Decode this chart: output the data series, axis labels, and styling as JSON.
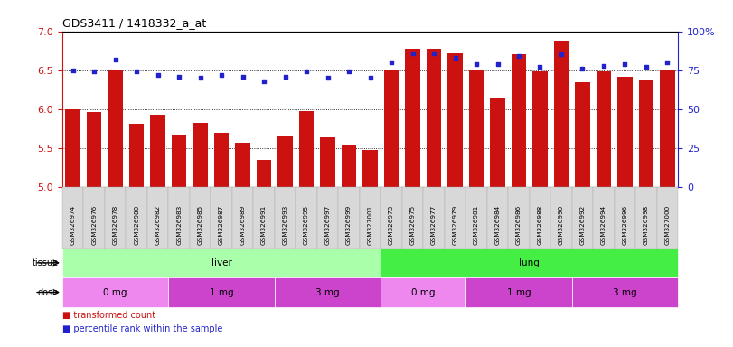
{
  "title": "GDS3411 / 1418332_a_at",
  "samples": [
    "GSM326974",
    "GSM326976",
    "GSM326978",
    "GSM326980",
    "GSM326982",
    "GSM326983",
    "GSM326985",
    "GSM326987",
    "GSM326989",
    "GSM326991",
    "GSM326993",
    "GSM326995",
    "GSM326997",
    "GSM326999",
    "GSM327001",
    "GSM326973",
    "GSM326975",
    "GSM326977",
    "GSM326979",
    "GSM326981",
    "GSM326984",
    "GSM326986",
    "GSM326988",
    "GSM326990",
    "GSM326992",
    "GSM326994",
    "GSM326996",
    "GSM326998",
    "GSM327000"
  ],
  "bar_values": [
    6.0,
    5.96,
    6.5,
    5.82,
    5.93,
    5.67,
    5.83,
    5.7,
    5.57,
    5.35,
    5.66,
    5.98,
    5.64,
    5.55,
    5.48,
    6.5,
    6.78,
    6.78,
    6.72,
    6.5,
    6.15,
    6.7,
    6.48,
    6.88,
    6.35,
    6.48,
    6.42,
    6.38,
    6.5
  ],
  "percentile_values": [
    75,
    74,
    82,
    74,
    72,
    71,
    70,
    72,
    71,
    68,
    71,
    74,
    70,
    74,
    70,
    80,
    86,
    86,
    83,
    79,
    79,
    84,
    77,
    85,
    76,
    78,
    79,
    77,
    80
  ],
  "ylim_left": [
    5.0,
    7.0
  ],
  "ylim_right": [
    0,
    100
  ],
  "yticks_left": [
    5.0,
    5.5,
    6.0,
    6.5,
    7.0
  ],
  "yticks_right": [
    0,
    25,
    50,
    75,
    100
  ],
  "bar_color": "#cc1111",
  "dot_color": "#2222cc",
  "tissue_groups": [
    {
      "label": "liver",
      "start": 0,
      "end": 15,
      "color": "#aaffaa"
    },
    {
      "label": "lung",
      "start": 15,
      "end": 29,
      "color": "#44ee44"
    }
  ],
  "dose_groups": [
    {
      "label": "0 mg",
      "start": 0,
      "end": 5,
      "color": "#ee88ee"
    },
    {
      "label": "1 mg",
      "start": 5,
      "end": 10,
      "color": "#cc44cc"
    },
    {
      "label": "3 mg",
      "start": 10,
      "end": 15,
      "color": "#cc44cc"
    },
    {
      "label": "0 mg",
      "start": 15,
      "end": 19,
      "color": "#ee88ee"
    },
    {
      "label": "1 mg",
      "start": 19,
      "end": 24,
      "color": "#cc44cc"
    },
    {
      "label": "3 mg",
      "start": 24,
      "end": 29,
      "color": "#cc44cc"
    }
  ],
  "legend_items": [
    {
      "label": "transformed count",
      "color": "#cc1111",
      "marker": "s"
    },
    {
      "label": "percentile rank within the sample",
      "color": "#2222cc",
      "marker": "s"
    }
  ],
  "tick_box_color": "#d8d8d8",
  "tick_box_edge": "#aaaaaa"
}
